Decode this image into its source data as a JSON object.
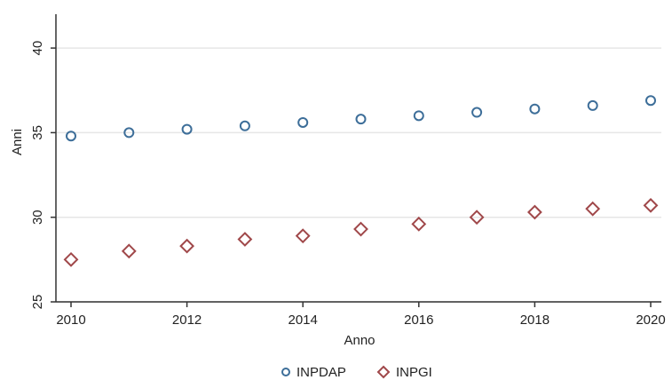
{
  "chart_data": {
    "type": "scatter",
    "title": "",
    "xlabel": "Anno",
    "ylabel": "Anni",
    "xlim": [
      2010,
      2020
    ],
    "ylim": [
      25,
      42
    ],
    "x_ticks": [
      2010,
      2012,
      2014,
      2016,
      2018,
      2020
    ],
    "x_tick_labels": [
      "2010",
      "2012",
      "2014",
      "2016",
      "2018",
      "2020"
    ],
    "y_ticks": [
      25,
      30,
      35,
      40
    ],
    "y_tick_labels": [
      "25",
      "30",
      "35",
      "40"
    ],
    "grid": true,
    "legend_position": "bottom",
    "x": [
      2010,
      2011,
      2012,
      2013,
      2014,
      2015,
      2016,
      2017,
      2018,
      2019,
      2020
    ],
    "series": [
      {
        "name": "INPDAP",
        "marker": "circle",
        "color": "#3d6e99",
        "values": [
          34.8,
          35.0,
          35.2,
          35.4,
          35.6,
          35.8,
          36.0,
          36.2,
          36.4,
          36.6,
          36.9
        ]
      },
      {
        "name": "INPGI",
        "marker": "diamond",
        "color": "#a0484a",
        "values": [
          27.5,
          28.0,
          28.3,
          28.7,
          28.9,
          29.3,
          29.6,
          30.0,
          30.3,
          30.5,
          30.7
        ]
      }
    ]
  }
}
